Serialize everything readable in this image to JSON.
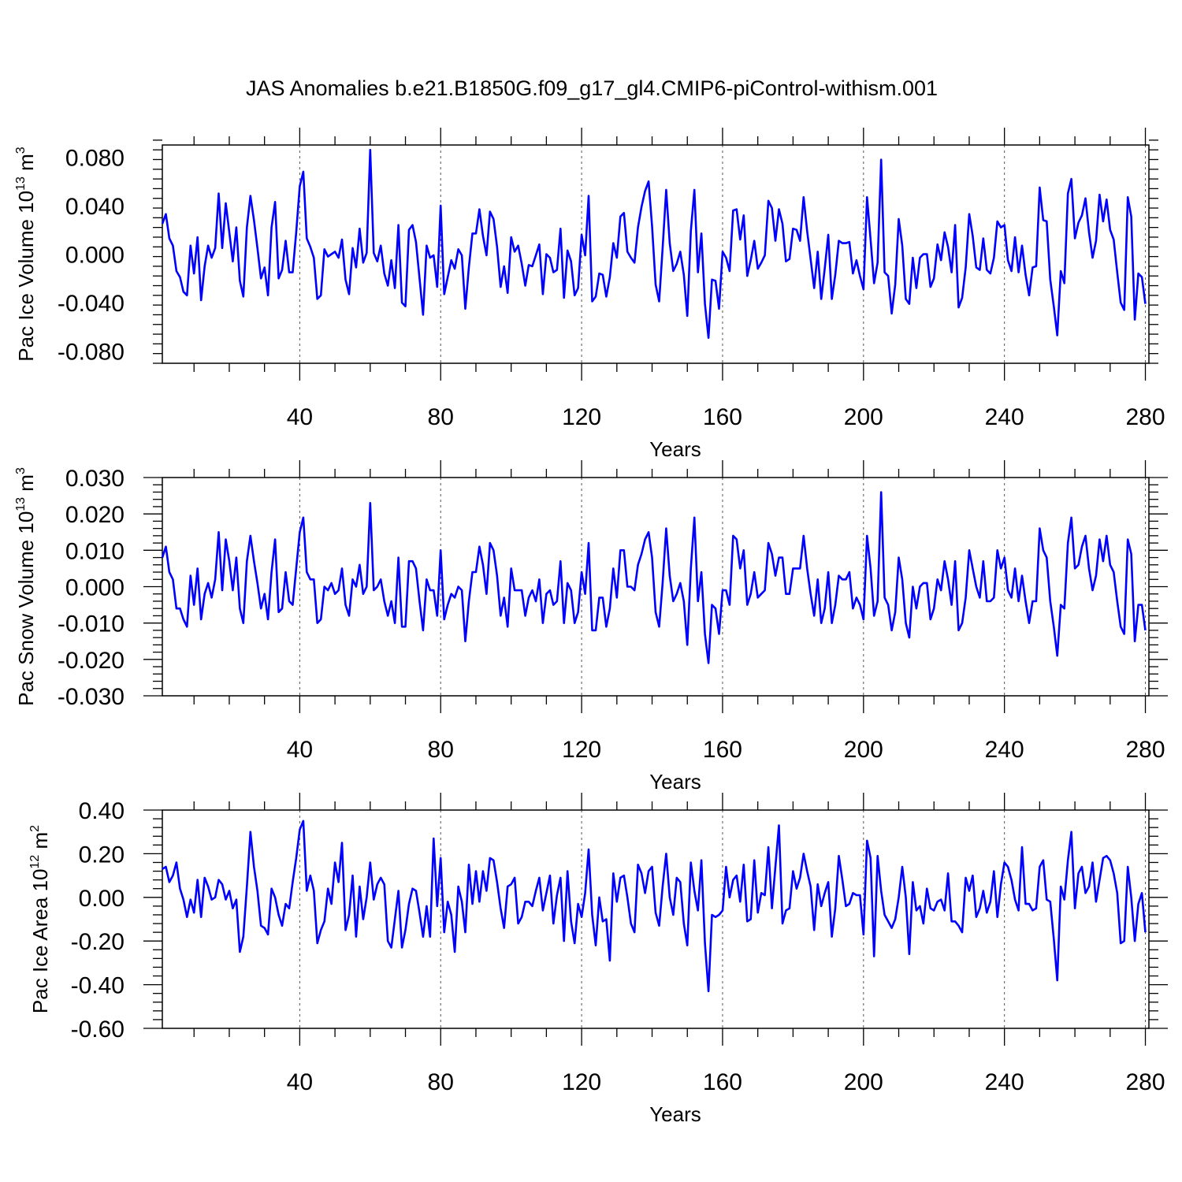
{
  "title": "JAS Anomalies b.e21.B1850G.f09_g17_gl4.CMIP6-piControl-withism.001",
  "line_color": "#0000ff",
  "chart_data": [
    {
      "type": "line",
      "ylabel": "Pac Ice Volume 10",
      "ylabel_exp": "13",
      "ylabel_unit": " m",
      "ylabel_unit_exp": "3",
      "xlabel": "Years",
      "xlim": [
        1,
        281
      ],
      "ylim": [
        -0.09,
        0.09
      ],
      "xticks": [
        40,
        80,
        120,
        160,
        200,
        240,
        280
      ],
      "yticks": [
        -0.08,
        -0.04,
        0.0,
        0.04,
        0.08
      ],
      "ytick_labels": [
        "-0.080",
        "-0.040",
        "0.000",
        "0.040",
        "0.080"
      ],
      "series": [
        {
          "name": "Pac Ice Volume",
          "values": [
            0.025,
            0.033,
            0.013,
            0.007,
            -0.014,
            -0.019,
            -0.031,
            -0.034,
            0.007,
            -0.016,
            0.014,
            -0.038,
            -0.01,
            0.007,
            -0.003,
            0.005,
            0.05,
            0.005,
            0.042,
            0.018,
            -0.006,
            0.022,
            -0.022,
            -0.035,
            0.022,
            0.048,
            0.028,
            0.005,
            -0.02,
            -0.011,
            -0.034,
            0.022,
            0.043,
            -0.02,
            -0.013,
            0.011,
            -0.015,
            -0.015,
            0.018,
            0.056,
            0.068,
            0.013,
            0.006,
            -0.003,
            -0.037,
            -0.034,
            0.004,
            -0.002,
            0.0,
            0.002,
            -0.003,
            0.012,
            -0.021,
            -0.033,
            0.005,
            -0.011,
            0.021,
            -0.007,
            0.001,
            0.086,
            0.001,
            -0.006,
            0.007,
            -0.016,
            -0.026,
            -0.005,
            -0.028,
            0.024,
            -0.04,
            -0.043,
            0.02,
            0.024,
            0.01,
            -0.02,
            -0.05,
            0.007,
            -0.003,
            -0.001,
            -0.027,
            0.04,
            -0.033,
            -0.019,
            -0.005,
            -0.012,
            0.004,
            -0.001,
            -0.045,
            -0.011,
            0.017,
            0.017,
            0.037,
            0.015,
            -0.001,
            0.035,
            0.029,
            0.006,
            -0.027,
            -0.01,
            -0.032,
            0.014,
            0.002,
            0.007,
            -0.008,
            -0.026,
            -0.009,
            -0.01,
            -0.001,
            0.008,
            -0.033,
            0.0,
            -0.003,
            -0.015,
            -0.013,
            0.021,
            -0.036,
            0.003,
            -0.006,
            -0.034,
            -0.028,
            0.016,
            -0.001,
            0.048,
            -0.039,
            -0.035,
            -0.016,
            -0.017,
            -0.035,
            -0.019,
            0.009,
            -0.003,
            0.031,
            0.034,
            0.002,
            -0.003,
            -0.007,
            0.022,
            0.039,
            0.052,
            0.06,
            0.023,
            -0.025,
            -0.039,
            0.005,
            0.053,
            0.009,
            -0.014,
            -0.008,
            0.002,
            -0.017,
            -0.051,
            0.019,
            0.053,
            -0.015,
            0.017,
            -0.041,
            -0.069,
            -0.021,
            -0.022,
            -0.045,
            0.002,
            -0.003,
            -0.014,
            0.036,
            0.037,
            0.012,
            0.032,
            -0.018,
            -0.005,
            0.011,
            -0.012,
            -0.007,
            -0.001,
            0.044,
            0.038,
            0.011,
            0.037,
            0.025,
            -0.006,
            -0.004,
            0.021,
            0.02,
            0.011,
            0.047,
            0.019,
            -0.004,
            -0.028,
            0.002,
            -0.037,
            -0.012,
            0.016,
            -0.037,
            -0.017,
            0.011,
            0.009,
            0.009,
            0.01,
            -0.016,
            -0.005,
            -0.018,
            -0.029,
            0.047,
            0.012,
            -0.024,
            -0.007,
            0.078,
            -0.015,
            -0.018,
            -0.049,
            -0.025,
            0.029,
            0.007,
            -0.037,
            -0.041,
            -0.003,
            -0.028,
            -0.003,
            0.0,
            0.0,
            -0.027,
            -0.02,
            0.008,
            -0.005,
            0.018,
            0.006,
            -0.015,
            0.024,
            -0.044,
            -0.036,
            -0.011,
            0.033,
            0.015,
            -0.011,
            -0.013,
            0.013,
            -0.013,
            -0.016,
            -0.003,
            0.027,
            0.022,
            0.024,
            -0.005,
            -0.014,
            0.014,
            -0.015,
            0.007,
            -0.017,
            -0.034,
            -0.011,
            -0.01,
            0.055,
            0.028,
            0.027,
            -0.021,
            -0.043,
            -0.067,
            -0.014,
            -0.024,
            0.05,
            0.062,
            0.013,
            0.026,
            0.032,
            0.046,
            0.018,
            -0.003,
            0.011,
            0.049,
            0.027,
            0.045,
            0.02,
            0.012,
            -0.015,
            -0.04,
            -0.046,
            0.047,
            0.031,
            -0.054,
            -0.016,
            -0.019,
            -0.041
          ]
        }
      ]
    },
    {
      "type": "line",
      "ylabel": "Pac Snow Volume 10",
      "ylabel_exp": "13",
      "ylabel_unit": " m",
      "ylabel_unit_exp": "3",
      "xlabel": "Years",
      "xlim": [
        1,
        281
      ],
      "ylim": [
        -0.03,
        0.03
      ],
      "xticks": [
        40,
        80,
        120,
        160,
        200,
        240,
        280
      ],
      "yticks": [
        -0.03,
        -0.02,
        -0.01,
        0.0,
        0.01,
        0.02,
        0.03
      ],
      "ytick_labels": [
        "-0.030",
        "-0.020",
        "-0.010",
        "0.000",
        "0.010",
        "0.020",
        "0.030"
      ],
      "series": [
        {
          "name": "Pac Snow Volume",
          "values": [
            0.008,
            0.011,
            0.004,
            0.002,
            -0.006,
            -0.006,
            -0.009,
            -0.011,
            0.003,
            -0.005,
            0.005,
            -0.009,
            -0.002,
            0.001,
            -0.003,
            0.002,
            0.015,
            -0.001,
            0.013,
            0.007,
            -0.001,
            0.008,
            -0.006,
            -0.01,
            0.007,
            0.014,
            0.007,
            0.001,
            -0.006,
            -0.002,
            -0.009,
            0.004,
            0.013,
            -0.007,
            -0.006,
            0.004,
            -0.004,
            -0.005,
            0.005,
            0.015,
            0.019,
            0.004,
            0.002,
            0.002,
            -0.01,
            -0.009,
            0.0,
            -0.001,
            0.001,
            -0.002,
            -0.001,
            0.005,
            -0.005,
            -0.008,
            0.002,
            0.0,
            0.006,
            -0.002,
            0.0,
            0.023,
            -0.001,
            0.0,
            0.002,
            -0.004,
            -0.008,
            -0.004,
            -0.01,
            0.008,
            -0.011,
            -0.011,
            0.007,
            0.007,
            0.005,
            -0.004,
            -0.012,
            0.002,
            -0.001,
            -0.001,
            -0.008,
            0.01,
            -0.009,
            -0.005,
            -0.002,
            -0.003,
            0.0,
            -0.001,
            -0.015,
            -0.004,
            0.004,
            0.004,
            0.011,
            0.006,
            -0.002,
            0.012,
            0.01,
            0.003,
            -0.008,
            -0.003,
            -0.011,
            0.005,
            -0.001,
            -0.001,
            -0.001,
            -0.008,
            -0.003,
            -0.001,
            -0.004,
            0.002,
            -0.01,
            -0.002,
            -0.001,
            -0.005,
            -0.004,
            0.007,
            -0.01,
            0.001,
            -0.001,
            -0.01,
            -0.007,
            0.004,
            -0.002,
            0.012,
            -0.012,
            -0.012,
            -0.003,
            -0.003,
            -0.011,
            -0.006,
            0.005,
            -0.003,
            0.01,
            0.01,
            0.0,
            0.0,
            -0.001,
            0.006,
            0.009,
            0.013,
            0.015,
            0.008,
            -0.007,
            -0.011,
            0.001,
            0.016,
            0.003,
            -0.004,
            -0.002,
            0.001,
            -0.004,
            -0.016,
            0.005,
            0.019,
            -0.004,
            0.004,
            -0.013,
            -0.021,
            -0.005,
            -0.006,
            -0.013,
            -0.001,
            -0.001,
            -0.005,
            0.014,
            0.013,
            0.005,
            0.01,
            -0.005,
            -0.002,
            0.004,
            -0.003,
            -0.002,
            -0.001,
            0.012,
            0.009,
            0.003,
            0.008,
            0.008,
            -0.002,
            -0.002,
            0.005,
            0.005,
            0.005,
            0.014,
            0.005,
            -0.002,
            -0.008,
            0.002,
            -0.01,
            -0.006,
            0.004,
            -0.01,
            -0.005,
            0.003,
            0.002,
            0.002,
            0.004,
            -0.006,
            -0.003,
            -0.005,
            -0.009,
            0.014,
            0.005,
            -0.008,
            -0.004,
            0.026,
            -0.003,
            -0.005,
            -0.012,
            -0.007,
            0.008,
            0.002,
            -0.01,
            -0.014,
            0.0,
            -0.006,
            0.0,
            0.001,
            0.001,
            -0.009,
            -0.006,
            0.002,
            -0.001,
            0.007,
            0.002,
            -0.005,
            0.007,
            -0.012,
            -0.01,
            -0.003,
            0.01,
            0.005,
            0.0,
            -0.003,
            0.007,
            -0.004,
            -0.004,
            -0.003,
            0.01,
            0.005,
            0.008,
            -0.001,
            -0.003,
            0.005,
            -0.004,
            0.003,
            -0.004,
            -0.01,
            -0.004,
            -0.004,
            0.016,
            0.01,
            0.008,
            -0.004,
            -0.011,
            -0.019,
            -0.005,
            -0.006,
            0.012,
            0.019,
            0.005,
            0.006,
            0.011,
            0.014,
            0.005,
            -0.001,
            0.003,
            0.013,
            0.007,
            0.014,
            0.006,
            0.004,
            -0.004,
            -0.011,
            -0.013,
            0.013,
            0.009,
            -0.015,
            -0.005,
            -0.005,
            -0.012
          ]
        }
      ]
    },
    {
      "type": "line",
      "ylabel": "Pac Ice Area 10",
      "ylabel_exp": "12",
      "ylabel_unit": " m",
      "ylabel_unit_exp": "2",
      "xlabel": "Years",
      "xlim": [
        1,
        281
      ],
      "ylim": [
        -0.6,
        0.4
      ],
      "xticks": [
        40,
        80,
        120,
        160,
        200,
        240,
        280
      ],
      "yticks": [
        -0.6,
        -0.4,
        -0.2,
        0.0,
        0.2,
        0.4
      ],
      "ytick_labels": [
        "-0.60",
        "-0.40",
        "-0.20",
        "0.00",
        "0.20",
        "0.40"
      ],
      "series": [
        {
          "name": "Pac Ice Area",
          "values": [
            0.13,
            0.14,
            0.07,
            0.1,
            0.16,
            0.04,
            -0.01,
            -0.09,
            -0.01,
            -0.07,
            0.08,
            -0.09,
            0.09,
            0.05,
            -0.01,
            0.0,
            0.08,
            0.06,
            -0.01,
            0.03,
            -0.05,
            -0.01,
            -0.25,
            -0.18,
            0.05,
            0.3,
            0.14,
            0.03,
            -0.13,
            -0.14,
            -0.17,
            0.04,
            0.0,
            -0.08,
            -0.13,
            -0.03,
            -0.05,
            0.07,
            0.18,
            0.31,
            0.35,
            0.03,
            0.1,
            0.03,
            -0.21,
            -0.15,
            -0.11,
            0.04,
            -0.03,
            0.16,
            0.07,
            0.25,
            -0.15,
            -0.08,
            0.1,
            -0.18,
            0.05,
            -0.1,
            0.0,
            0.16,
            -0.01,
            0.06,
            0.09,
            0.06,
            -0.2,
            -0.23,
            -0.1,
            0.03,
            -0.23,
            -0.15,
            -0.03,
            0.04,
            0.03,
            -0.07,
            -0.18,
            -0.04,
            -0.18,
            0.27,
            -0.04,
            0.18,
            -0.16,
            -0.02,
            -0.08,
            -0.25,
            0.05,
            -0.02,
            -0.16,
            0.15,
            -0.03,
            0.12,
            -0.02,
            0.12,
            0.03,
            0.18,
            0.17,
            0.07,
            -0.05,
            -0.14,
            0.05,
            0.06,
            0.09,
            -0.12,
            -0.09,
            -0.02,
            -0.02,
            -0.04,
            0.03,
            0.09,
            -0.06,
            0.02,
            0.1,
            -0.12,
            0.01,
            0.09,
            -0.2,
            0.12,
            -0.11,
            -0.21,
            -0.03,
            -0.09,
            0.02,
            0.22,
            -0.08,
            -0.22,
            0.0,
            -0.11,
            -0.1,
            -0.29,
            0.11,
            -0.02,
            0.09,
            0.1,
            0.0,
            -0.12,
            -0.16,
            0.15,
            0.11,
            0.02,
            0.12,
            0.14,
            -0.07,
            -0.13,
            0.05,
            0.2,
            0.0,
            -0.08,
            0.09,
            0.07,
            -0.12,
            -0.22,
            0.16,
            0.03,
            -0.06,
            0.17,
            -0.21,
            -0.43,
            -0.08,
            -0.09,
            -0.08,
            -0.06,
            0.14,
            0.0,
            0.08,
            0.1,
            -0.02,
            0.15,
            -0.11,
            -0.1,
            0.17,
            -0.07,
            0.02,
            0.01,
            0.23,
            -0.05,
            0.14,
            0.33,
            -0.12,
            -0.06,
            -0.05,
            0.12,
            0.04,
            0.09,
            0.2,
            0.12,
            0.05,
            -0.15,
            0.06,
            -0.04,
            0.02,
            0.07,
            -0.18,
            -0.05,
            0.19,
            0.08,
            -0.04,
            -0.03,
            0.02,
            0.01,
            0.01,
            -0.17,
            0.26,
            0.18,
            -0.27,
            0.19,
            0.03,
            -0.08,
            -0.11,
            -0.14,
            -0.1,
            0.0,
            0.14,
            0.0,
            -0.26,
            0.07,
            -0.06,
            -0.04,
            -0.12,
            0.04,
            -0.05,
            -0.06,
            -0.02,
            -0.01,
            -0.06,
            0.11,
            -0.11,
            -0.11,
            -0.13,
            -0.16,
            0.09,
            0.03,
            0.1,
            -0.09,
            -0.05,
            0.03,
            -0.07,
            -0.02,
            0.12,
            -0.09,
            0.06,
            0.16,
            0.14,
            0.08,
            -0.01,
            -0.06,
            0.23,
            -0.03,
            -0.03,
            -0.06,
            -0.05,
            0.14,
            0.17,
            -0.01,
            -0.02,
            -0.19,
            -0.38,
            0.05,
            -0.01,
            0.17,
            0.3,
            -0.05,
            0.11,
            0.14,
            0.02,
            0.05,
            0.16,
            -0.02,
            0.08,
            0.18,
            0.19,
            0.17,
            0.11,
            0.02,
            -0.21,
            -0.2,
            0.14,
            0.0,
            -0.2,
            -0.03,
            0.02,
            -0.16
          ]
        }
      ]
    }
  ]
}
